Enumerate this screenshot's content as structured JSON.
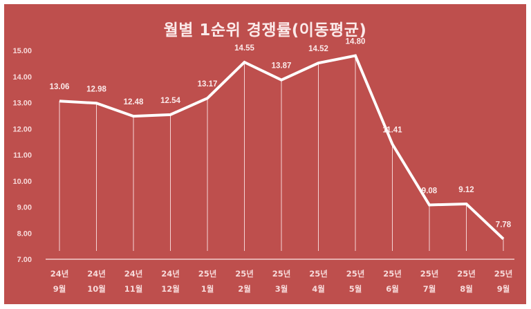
{
  "chart_data": {
    "type": "line",
    "title": "월별 1순위 경쟁률(이동평균)",
    "xlabel": "",
    "ylabel": "",
    "ylim": [
      7,
      15
    ],
    "yticks": [
      "7.00",
      "8.00",
      "9.00",
      "10.00",
      "11.00",
      "12.00",
      "13.00",
      "14.00",
      "15.00"
    ],
    "grid": false,
    "legend": null,
    "categories": [
      [
        "24년",
        "9월"
      ],
      [
        "24년",
        "10월"
      ],
      [
        "24년",
        "11월"
      ],
      [
        "24년",
        "12월"
      ],
      [
        "25년",
        "1월"
      ],
      [
        "25년",
        "2월"
      ],
      [
        "25년",
        "3월"
      ],
      [
        "25년",
        "4월"
      ],
      [
        "25년",
        "5월"
      ],
      [
        "25년",
        "6월"
      ],
      [
        "25년",
        "7월"
      ],
      [
        "25년",
        "8월"
      ],
      [
        "25년",
        "9월"
      ]
    ],
    "series": [
      {
        "name": "1순위 경쟁률(이동평균)",
        "values": [
          13.06,
          12.98,
          12.48,
          12.54,
          13.17,
          14.55,
          13.87,
          14.52,
          14.8,
          11.41,
          9.08,
          9.12,
          7.78
        ],
        "labels": [
          "13.06",
          "12.98",
          "12.48",
          "12.54",
          "13.17",
          "14.55",
          "13.87",
          "14.52",
          "14.80",
          "11.41",
          "9.08",
          "9.12",
          "7.78"
        ]
      }
    ],
    "drop_lines": true
  },
  "colors": {
    "background": "#BE4F4D",
    "line": "#FFFFFF",
    "text": "#F7DADA"
  }
}
